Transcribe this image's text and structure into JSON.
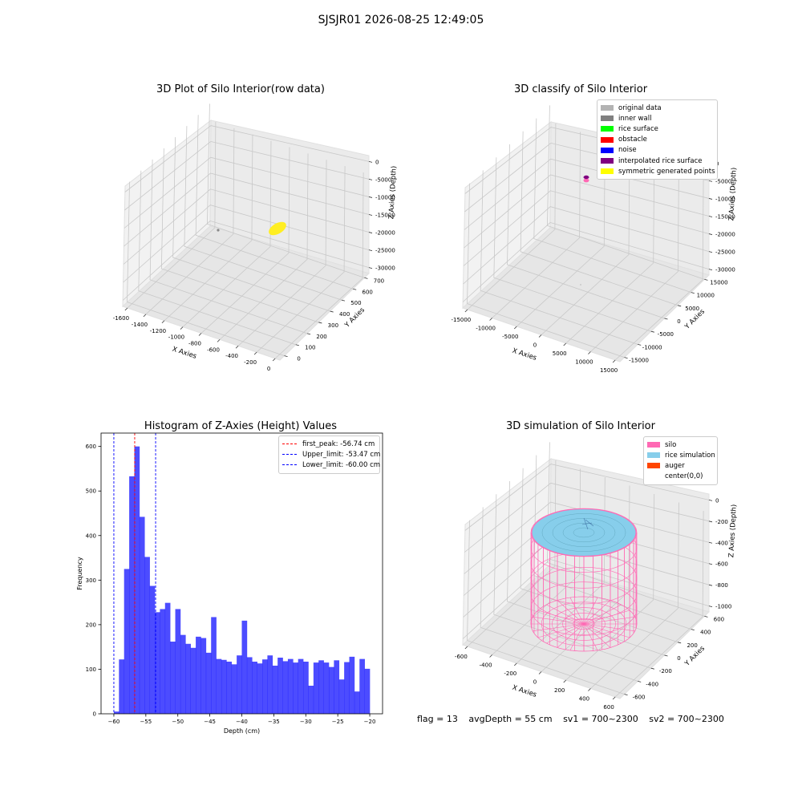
{
  "suptitle": "SJSJR01 2026-08-25 12:49:05",
  "status": {
    "flag": "flag = 13",
    "avg_depth": "avgDepth = 55 cm",
    "sv1": "sv1 = 700~2300",
    "sv2": "sv2 = 700~2300"
  },
  "chart_data": [
    {
      "id": "raw3d",
      "type": "scatter",
      "title": "3D Plot of Silo Interior(row data)",
      "xlabel": "X Axies",
      "ylabel": "Y Axies",
      "zlabel": "Z Axies (Depth)",
      "xticks": [
        "-1600",
        "-1400",
        "-1200",
        "-1000",
        "-800",
        "-600",
        "-400",
        "-200",
        "0"
      ],
      "yticks": [
        "0",
        "100",
        "200",
        "300",
        "400",
        "500",
        "600",
        "700"
      ],
      "zticks": [
        "0",
        "-5000",
        "-10000",
        "-15000",
        "-20000",
        "-25000",
        "-30000"
      ],
      "grid": true,
      "series": [
        {
          "color": "#ffee22",
          "points": [
            [
              -180,
              380,
              -20000
            ]
          ]
        },
        {
          "color": "#888888",
          "points": [
            [
              -1600,
              700,
              -20000
            ]
          ]
        }
      ]
    },
    {
      "id": "classify3d",
      "type": "scatter",
      "title": "3D classify of Silo Interior",
      "xlabel": "X Axies",
      "ylabel": "Y Axies",
      "zlabel": "Z Axies (Depth)",
      "xticks": [
        "-15000",
        "-10000",
        "-5000",
        "0",
        "5000",
        "10000",
        "15000"
      ],
      "yticks": [
        "-15000",
        "-10000",
        "-5000",
        "0",
        "5000",
        "10000",
        "15000"
      ],
      "zticks": [
        "0",
        "-5000",
        "-10000",
        "-15000",
        "-20000",
        "-25000",
        "-30000"
      ],
      "grid": true,
      "legend_position": "top-right",
      "legend": [
        {
          "name": "original data",
          "color": "#b3b3b3"
        },
        {
          "name": "inner wall",
          "color": "#808080"
        },
        {
          "name": "rice surface",
          "color": "#00ff00"
        },
        {
          "name": "obstacle",
          "color": "#ff0000"
        },
        {
          "name": "noise",
          "color": "#0000ff"
        },
        {
          "name": "interpolated rice surface",
          "color": "#800080"
        },
        {
          "name": "symmetric generated points",
          "color": "#ffff00"
        }
      ]
    },
    {
      "id": "histogram",
      "type": "bar",
      "title": "Histogram of Z-Axies (Height) Values",
      "xlabel": "Depth (cm)",
      "ylabel": "Frequency",
      "xlim": [
        -62,
        -18
      ],
      "ylim": [
        0,
        630
      ],
      "xticks": [
        -60,
        -55,
        -50,
        -45,
        -40,
        -35,
        -30,
        -25,
        -20
      ],
      "yticks": [
        0,
        100,
        200,
        300,
        400,
        500,
        600
      ],
      "bar_color": "#0000ff",
      "bin_start": -60,
      "bin_width": 0.8,
      "values": [
        5,
        122,
        325,
        533,
        600,
        442,
        352,
        287,
        228,
        235,
        249,
        162,
        235,
        177,
        157,
        148,
        173,
        170,
        137,
        217,
        123,
        121,
        117,
        111,
        131,
        209,
        127,
        117,
        113,
        122,
        131,
        108,
        126,
        118,
        123,
        115,
        123,
        117,
        63,
        115,
        120,
        115,
        105,
        120,
        77,
        116,
        128,
        50,
        123,
        101
      ],
      "lines": [
        {
          "label": "first_peak: -56.74 cm",
          "x": -56.74,
          "color": "#ff0000"
        },
        {
          "label": "Upper_limit: -53.47 cm",
          "x": -53.47,
          "color": "#0000ff"
        },
        {
          "label": "Lower_limit: -60.00 cm",
          "x": -60.0,
          "color": "#0000ff"
        }
      ],
      "legend_position": "top-right"
    },
    {
      "id": "simulation3d",
      "type": "surface",
      "title": "3D simulation of Silo Interior",
      "xlabel": "X Axies",
      "ylabel": "Y Axies",
      "zlabel": "Z Axies (Depth)",
      "xticks": [
        "-600",
        "-400",
        "-200",
        "0",
        "200",
        "400",
        "600"
      ],
      "yticks": [
        "-600",
        "-400",
        "-200",
        "0",
        "200",
        "400",
        "600"
      ],
      "zticks": [
        "0",
        "-200",
        "-400",
        "-600",
        "-800",
        "-1000"
      ],
      "grid": true,
      "legend_position": "top-right",
      "legend": [
        {
          "name": "silo",
          "color": "#ff69b4"
        },
        {
          "name": "rice simulation",
          "color": "#87ceeb"
        },
        {
          "name": "auger",
          "color": "#ff4500"
        },
        {
          "name": "center(0,0)",
          "color": "#ffffff"
        }
      ]
    }
  ]
}
